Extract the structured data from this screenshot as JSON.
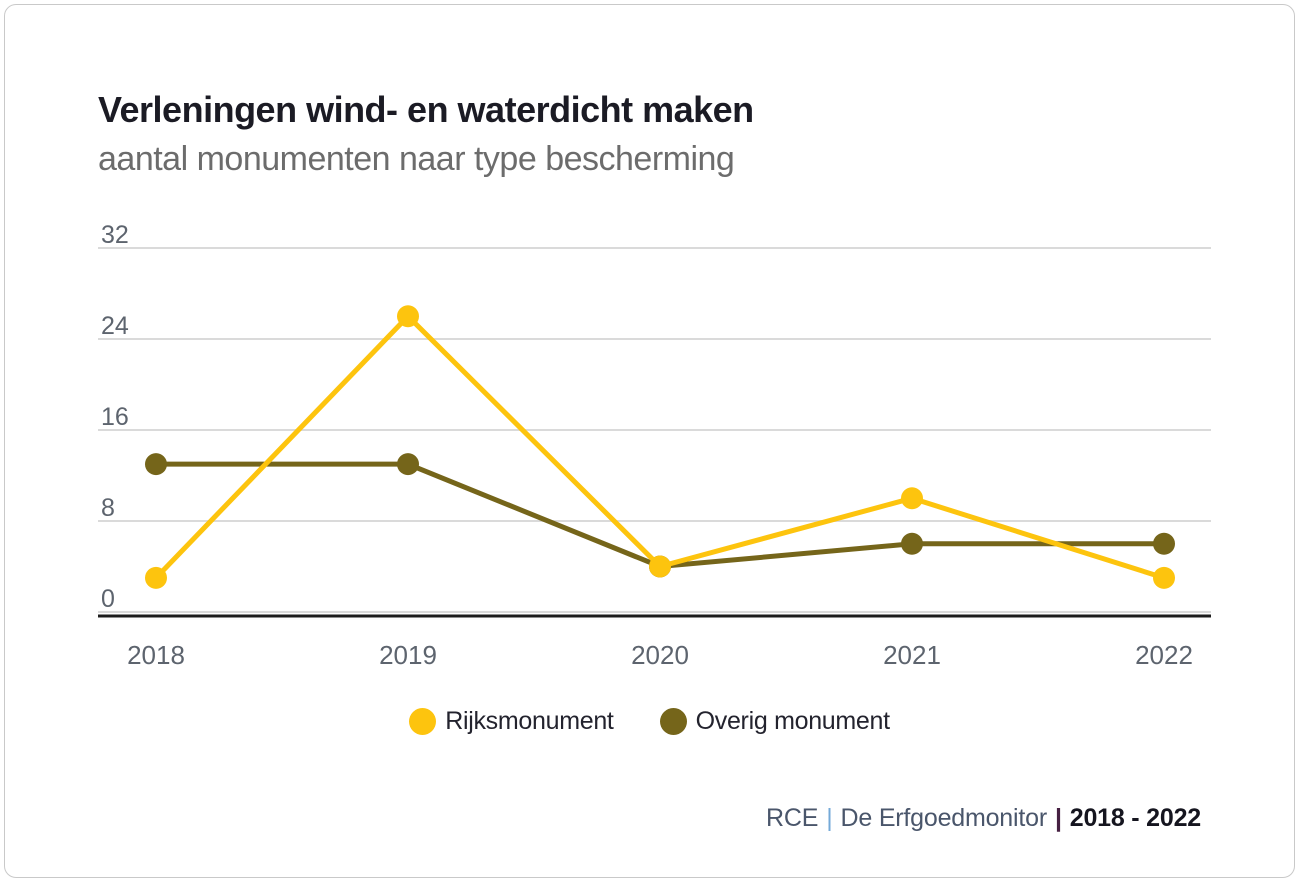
{
  "header": {
    "title": "Verleningen wind- en waterdicht maken",
    "subtitle": "aantal monumenten naar type bescherming"
  },
  "chart_data": {
    "type": "line",
    "title": "Verleningen wind- en waterdicht maken",
    "subtitle": "aantal monumenten naar type bescherming",
    "x": [
      "2018",
      "2019",
      "2020",
      "2021",
      "2022"
    ],
    "series": [
      {
        "name": "Rijksmonument",
        "color": "#fdc40e",
        "values": [
          3,
          26,
          4,
          10,
          3
        ]
      },
      {
        "name": "Overig monument",
        "color": "#75651a",
        "values": [
          13,
          13,
          4,
          6,
          6
        ]
      }
    ],
    "yticks": [
      0,
      8,
      16,
      24,
      32
    ],
    "ylim": [
      0,
      32
    ],
    "xlabel": "",
    "ylabel": "",
    "grid": true,
    "legend_position": "bottom",
    "colors": {
      "gridline": "#dadada",
      "axis_line": "#1d1d1d",
      "tick_label": "#5d646e"
    }
  },
  "footer": {
    "source": "RCE",
    "separator": "|",
    "monitor": "De Erfgoedmonitor",
    "range": "2018 - 2022"
  }
}
